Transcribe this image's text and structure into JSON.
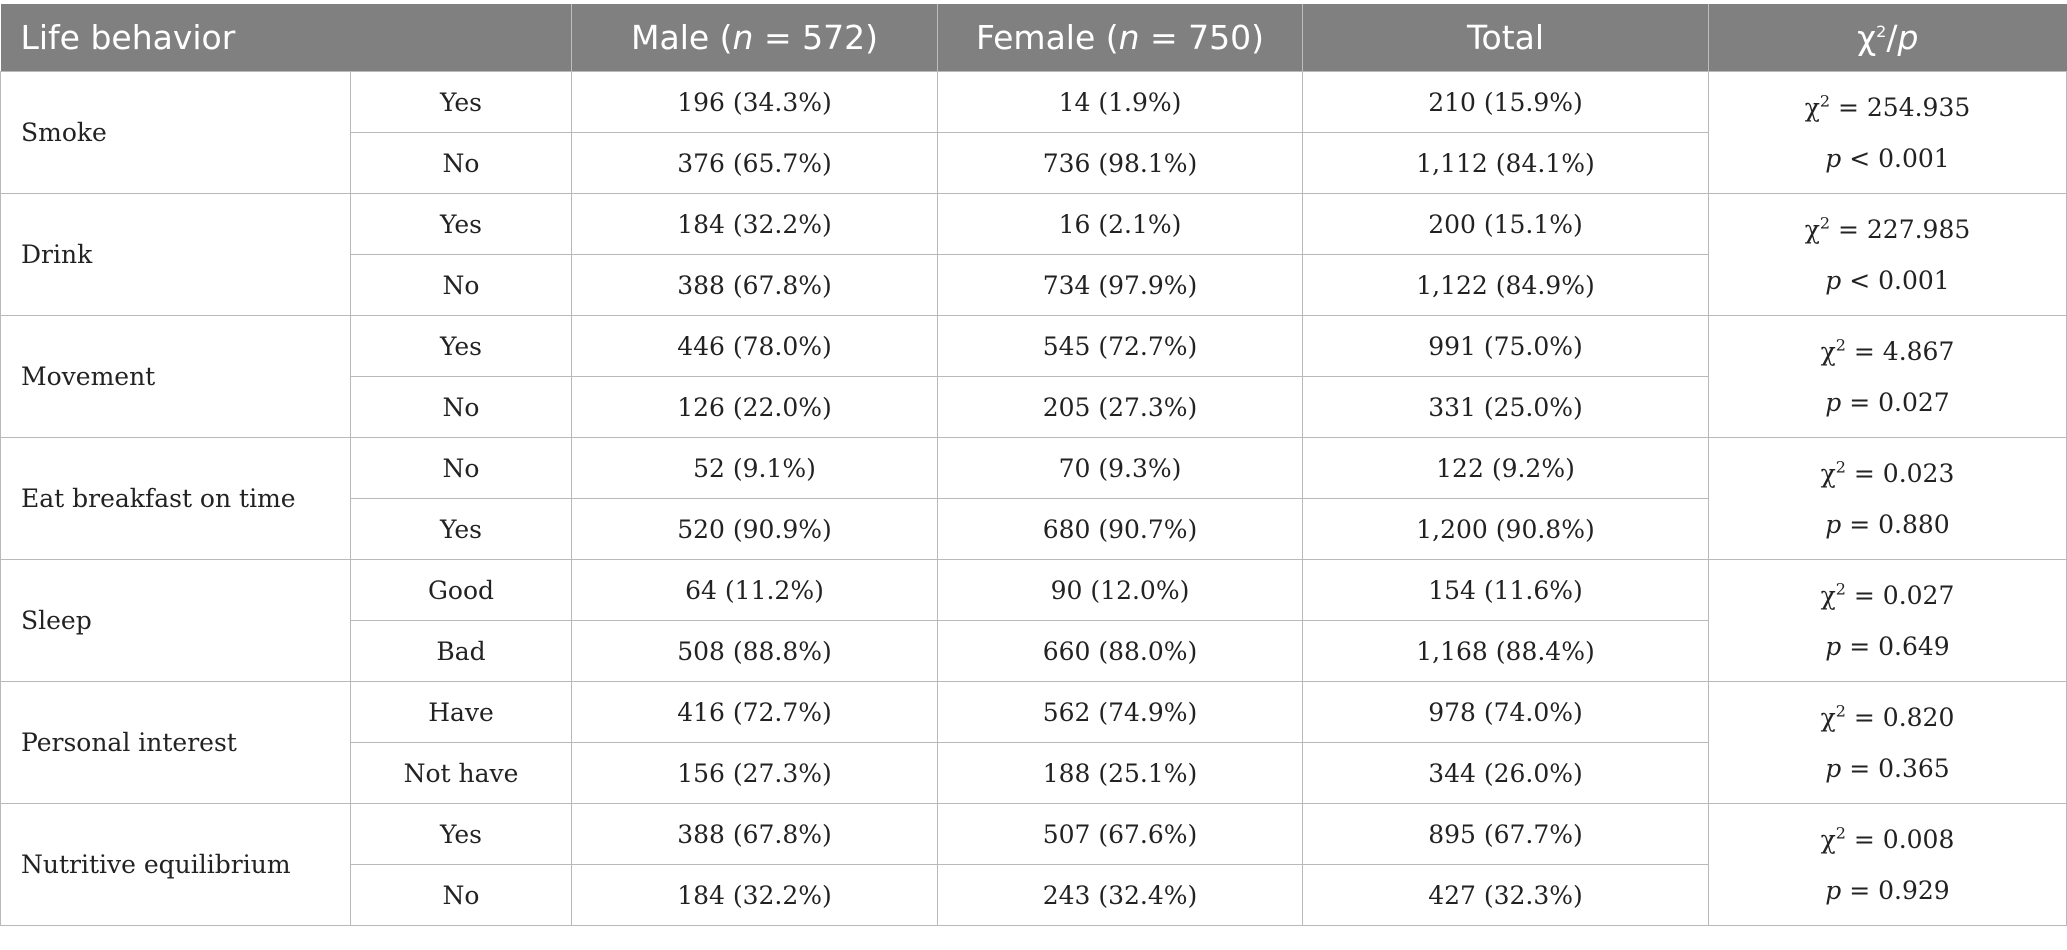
{
  "headers": {
    "behavior": "Life behavior",
    "male_prefix": "Male (",
    "male_n": "n",
    "male_suffix": " = 572)",
    "female_prefix": "Female (",
    "female_n": "n",
    "female_suffix": " = 750)",
    "total": "Total",
    "chi_base": "χ",
    "chi_sup": "2",
    "chi_slash": "/",
    "chi_p": "p"
  },
  "rows": [
    {
      "behavior": "Smoke",
      "options": [
        {
          "label": "Yes",
          "male": "196 (34.3%)",
          "female": "14 (1.9%)",
          "total": "210 (15.9%)"
        },
        {
          "label": "No",
          "male": "376 (65.7%)",
          "female": "736 (98.1%)",
          "total": "1,112 (84.1%)"
        }
      ],
      "chi": "= 254.935",
      "p": "< 0.001"
    },
    {
      "behavior": "Drink",
      "options": [
        {
          "label": "Yes",
          "male": "184 (32.2%)",
          "female": "16 (2.1%)",
          "total": "200 (15.1%)"
        },
        {
          "label": "No",
          "male": "388 (67.8%)",
          "female": "734 (97.9%)",
          "total": "1,122 (84.9%)"
        }
      ],
      "chi": "= 227.985",
      "p": "< 0.001"
    },
    {
      "behavior": "Movement",
      "options": [
        {
          "label": "Yes",
          "male": "446 (78.0%)",
          "female": "545 (72.7%)",
          "total": "991 (75.0%)"
        },
        {
          "label": "No",
          "male": "126 (22.0%)",
          "female": "205 (27.3%)",
          "total": "331 (25.0%)"
        }
      ],
      "chi": "= 4.867",
      "p": "= 0.027"
    },
    {
      "behavior": "Eat breakfast on time",
      "options": [
        {
          "label": "No",
          "male": "52 (9.1%)",
          "female": "70 (9.3%)",
          "total": "122 (9.2%)"
        },
        {
          "label": "Yes",
          "male": "520 (90.9%)",
          "female": "680 (90.7%)",
          "total": "1,200 (90.8%)"
        }
      ],
      "chi": "= 0.023",
      "p": "= 0.880"
    },
    {
      "behavior": "Sleep",
      "options": [
        {
          "label": "Good",
          "male": "64 (11.2%)",
          "female": "90 (12.0%)",
          "total": "154 (11.6%)"
        },
        {
          "label": "Bad",
          "male": "508 (88.8%)",
          "female": "660 (88.0%)",
          "total": "1,168 (88.4%)"
        }
      ],
      "chi": "= 0.027",
      "p": "= 0.649"
    },
    {
      "behavior": "Personal interest",
      "options": [
        {
          "label": "Have",
          "male": "416 (72.7%)",
          "female": "562 (74.9%)",
          "total": "978 (74.0%)"
        },
        {
          "label": "Not have",
          "male": "156 (27.3%)",
          "female": "188 (25.1%)",
          "total": "344 (26.0%)"
        }
      ],
      "chi": "= 0.820",
      "p": "= 0.365"
    },
    {
      "behavior": "Nutritive equilibrium",
      "options": [
        {
          "label": "Yes",
          "male": "388 (67.8%)",
          "female": "507 (67.6%)",
          "total": "895 (67.7%)"
        },
        {
          "label": "No",
          "male": "184 (32.2%)",
          "female": "243 (32.4%)",
          "total": "427 (32.3%)"
        }
      ],
      "chi": "= 0.008",
      "p": "= 0.929"
    }
  ]
}
